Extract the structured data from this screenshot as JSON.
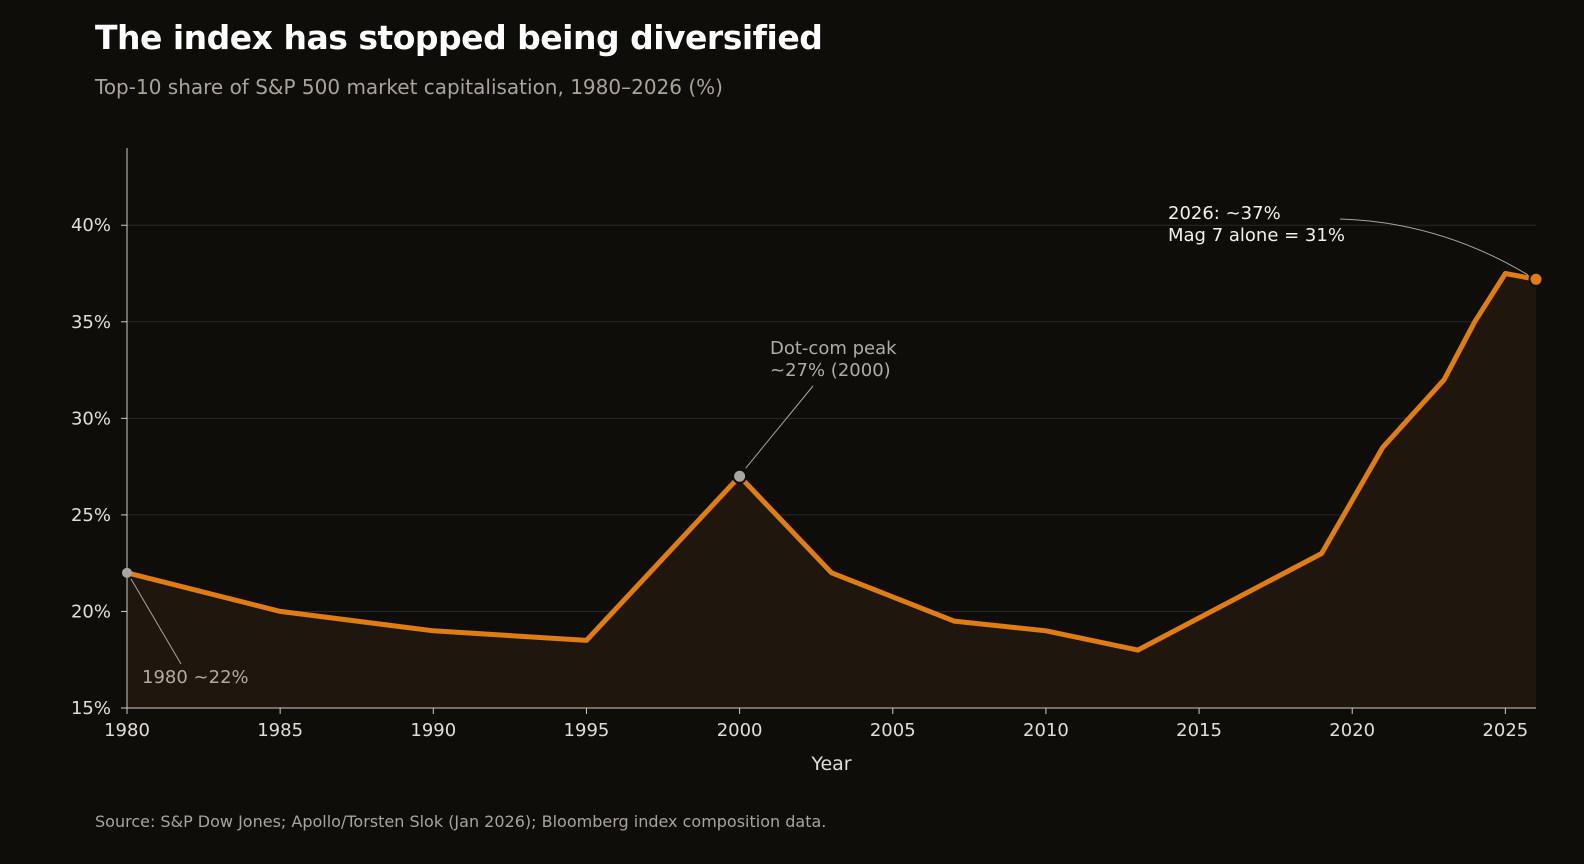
{
  "title": "The index has stopped being diversified",
  "subtitle": "Top-10 share of S&P 500 market capitalisation, 1980–2026 (%)",
  "source": "Source: S&P Dow Jones; Apollo/Torsten Slok (Jan 2026); Bloomberg index composition data.",
  "colors": {
    "line": "#e07d10",
    "area": "#1f170d",
    "background": "#0e0d0a",
    "marker_grey": "#a8a6a2",
    "annotation_grey": "#b0aca4"
  },
  "chart_data": {
    "type": "area",
    "xlabel": "Year",
    "ylabel": "",
    "xlim": [
      1980,
      2026
    ],
    "ylim": [
      15,
      44
    ],
    "x_ticks": [
      "1980",
      "1985",
      "1990",
      "1995",
      "2000",
      "2005",
      "2010",
      "2015",
      "2020",
      "2025"
    ],
    "y_ticks": [
      "15%",
      "20%",
      "25%",
      "30%",
      "35%",
      "40%"
    ],
    "grid": "horizontal",
    "series": [
      {
        "x": [
          1980,
          1985,
          1990,
          1995,
          2000,
          2003,
          2007,
          2010,
          2013,
          2016,
          2019,
          2021,
          2023,
          2024,
          2025,
          2026
        ],
        "y": [
          22.0,
          20.0,
          19.0,
          18.5,
          27.0,
          22.0,
          19.5,
          19.0,
          18.0,
          20.5,
          23.0,
          28.5,
          32.0,
          35.0,
          37.5,
          37.2
        ]
      }
    ],
    "annotations": [
      {
        "id": "start",
        "x": 1980,
        "y": 22.0,
        "lines": [
          "1980 ~22%"
        ]
      },
      {
        "id": "dotcom",
        "x": 2000,
        "y": 27.0,
        "lines": [
          "Dot-com peak",
          "~27% (2000)"
        ]
      },
      {
        "id": "latest",
        "x": 2026,
        "y": 37.2,
        "lines": [
          "2026: ~37%",
          "Mag 7 alone = 31%"
        ]
      }
    ]
  }
}
